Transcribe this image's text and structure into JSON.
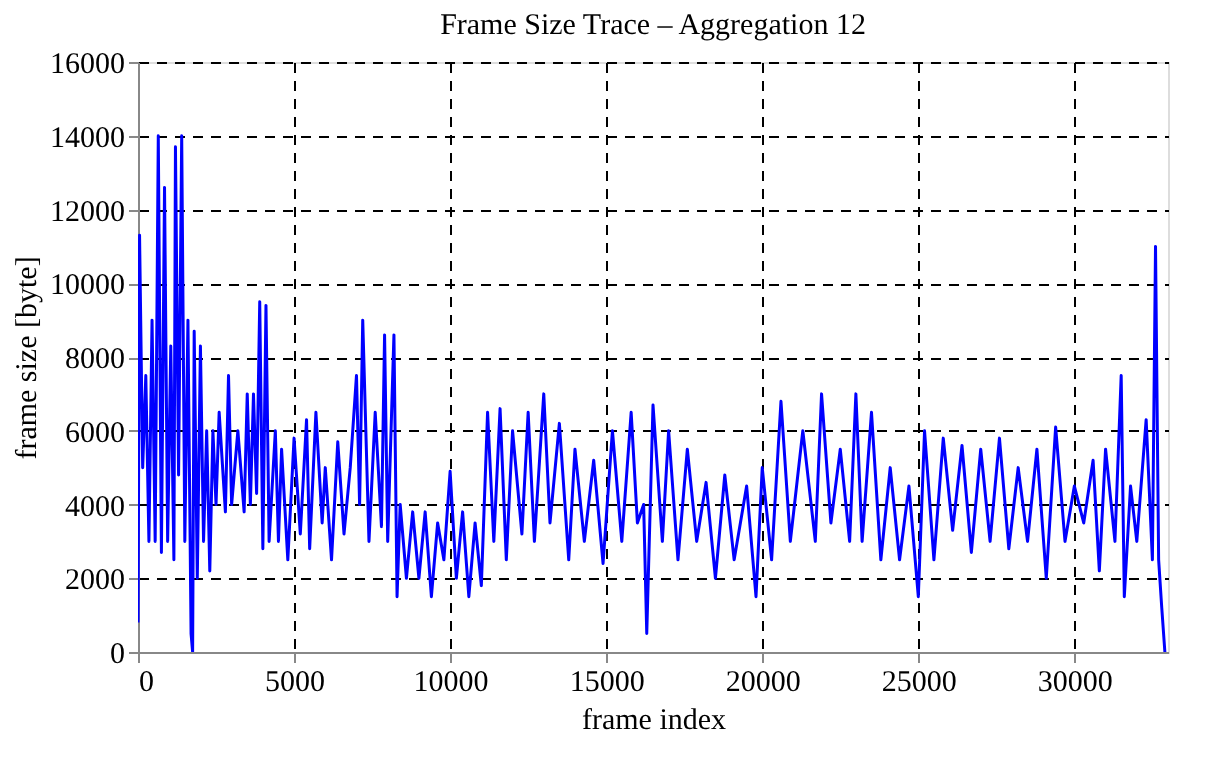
{
  "chart_data": {
    "type": "line",
    "title": "Frame Size Trace – Aggregation 12",
    "xlabel": "frame index",
    "ylabel": "frame size [byte]",
    "xlim": [
      0,
      33000
    ],
    "xticks": [
      0,
      5000,
      10000,
      15000,
      20000,
      25000,
      30000
    ],
    "ylim": [
      0,
      16000
    ],
    "yticks": [
      0,
      2000,
      4000,
      6000,
      8000,
      10000,
      12000,
      14000,
      16000
    ],
    "grid": true,
    "line_style": "solid",
    "marker": "none",
    "series": [
      {
        "color": "#0000ff",
        "x": [
          0,
          50,
          150,
          250,
          350,
          450,
          550,
          650,
          750,
          850,
          950,
          1050,
          1150,
          1200,
          1300,
          1400,
          1500,
          1600,
          1700,
          1750,
          1800,
          1900,
          2000,
          2100,
          2200,
          2300,
          2400,
          2500,
          2600,
          2800,
          2900,
          3000,
          3200,
          3400,
          3500,
          3600,
          3700,
          3800,
          3900,
          4000,
          4100,
          4200,
          4400,
          4500,
          4600,
          4800,
          5000,
          5200,
          5400,
          5500,
          5700,
          5900,
          6000,
          6200,
          6400,
          6600,
          6800,
          7000,
          7100,
          7200,
          7400,
          7600,
          7800,
          7900,
          8000,
          8200,
          8300,
          8400,
          8600,
          8800,
          9000,
          9200,
          9400,
          9600,
          9800,
          10000,
          10200,
          10400,
          10600,
          10800,
          11000,
          11200,
          11400,
          11600,
          11800,
          12000,
          12300,
          12500,
          12700,
          13000,
          13200,
          13500,
          13800,
          14000,
          14300,
          14600,
          14900,
          15200,
          15500,
          15800,
          16000,
          16200,
          16300,
          16500,
          16800,
          17000,
          17300,
          17600,
          17900,
          18200,
          18500,
          18800,
          19100,
          19500,
          19800,
          20000,
          20300,
          20600,
          20900,
          21300,
          21700,
          21900,
          22200,
          22500,
          22800,
          23000,
          23200,
          23500,
          23800,
          24100,
          24400,
          24700,
          25000,
          25200,
          25500,
          25800,
          26100,
          26400,
          26700,
          27000,
          27300,
          27600,
          27900,
          28200,
          28500,
          28800,
          29100,
          29400,
          29700,
          30000,
          30300,
          30600,
          30800,
          31000,
          31300,
          31500,
          31600,
          31800,
          32000,
          32300,
          32500,
          32600,
          32700,
          32800,
          32900
        ],
        "values": [
          800,
          11300,
          5000,
          7500,
          3000,
          9000,
          3000,
          14000,
          2700,
          12600,
          3000,
          8300,
          2500,
          13700,
          4800,
          14000,
          3000,
          9000,
          500,
          0,
          8700,
          2000,
          8300,
          3000,
          6000,
          2200,
          6000,
          4000,
          6500,
          3800,
          7500,
          4000,
          6000,
          3800,
          7000,
          4000,
          7000,
          4300,
          9500,
          2800,
          9400,
          3000,
          6000,
          3000,
          5500,
          2500,
          5800,
          3200,
          6300,
          2800,
          6500,
          3500,
          5000,
          2500,
          5700,
          3200,
          5000,
          7500,
          4000,
          9000,
          3000,
          6500,
          3400,
          8600,
          3000,
          8600,
          1500,
          4000,
          2000,
          3800,
          2000,
          3800,
          1500,
          3500,
          2500,
          4900,
          2000,
          3800,
          1500,
          3500,
          1800,
          6500,
          3000,
          6600,
          2500,
          6000,
          3200,
          6500,
          3000,
          7000,
          3500,
          6200,
          2500,
          5500,
          3000,
          5200,
          2400,
          6000,
          3000,
          6500,
          3500,
          4000,
          500,
          6700,
          3000,
          6000,
          2500,
          5500,
          3000,
          4600,
          2000,
          4800,
          2500,
          4500,
          1500,
          5000,
          2500,
          6800,
          3000,
          6000,
          3000,
          7000,
          3500,
          5500,
          3000,
          7000,
          3000,
          6500,
          2500,
          5000,
          2500,
          4500,
          1500,
          6000,
          2500,
          5800,
          3300,
          5600,
          2700,
          5500,
          3000,
          5800,
          2800,
          5000,
          3000,
          5500,
          2000,
          6100,
          3000,
          4500,
          3500,
          5200,
          2200,
          5500,
          3000,
          7500,
          1500,
          4500,
          3000,
          6300,
          2500,
          11000,
          2500,
          1200,
          0
        ]
      }
    ]
  }
}
